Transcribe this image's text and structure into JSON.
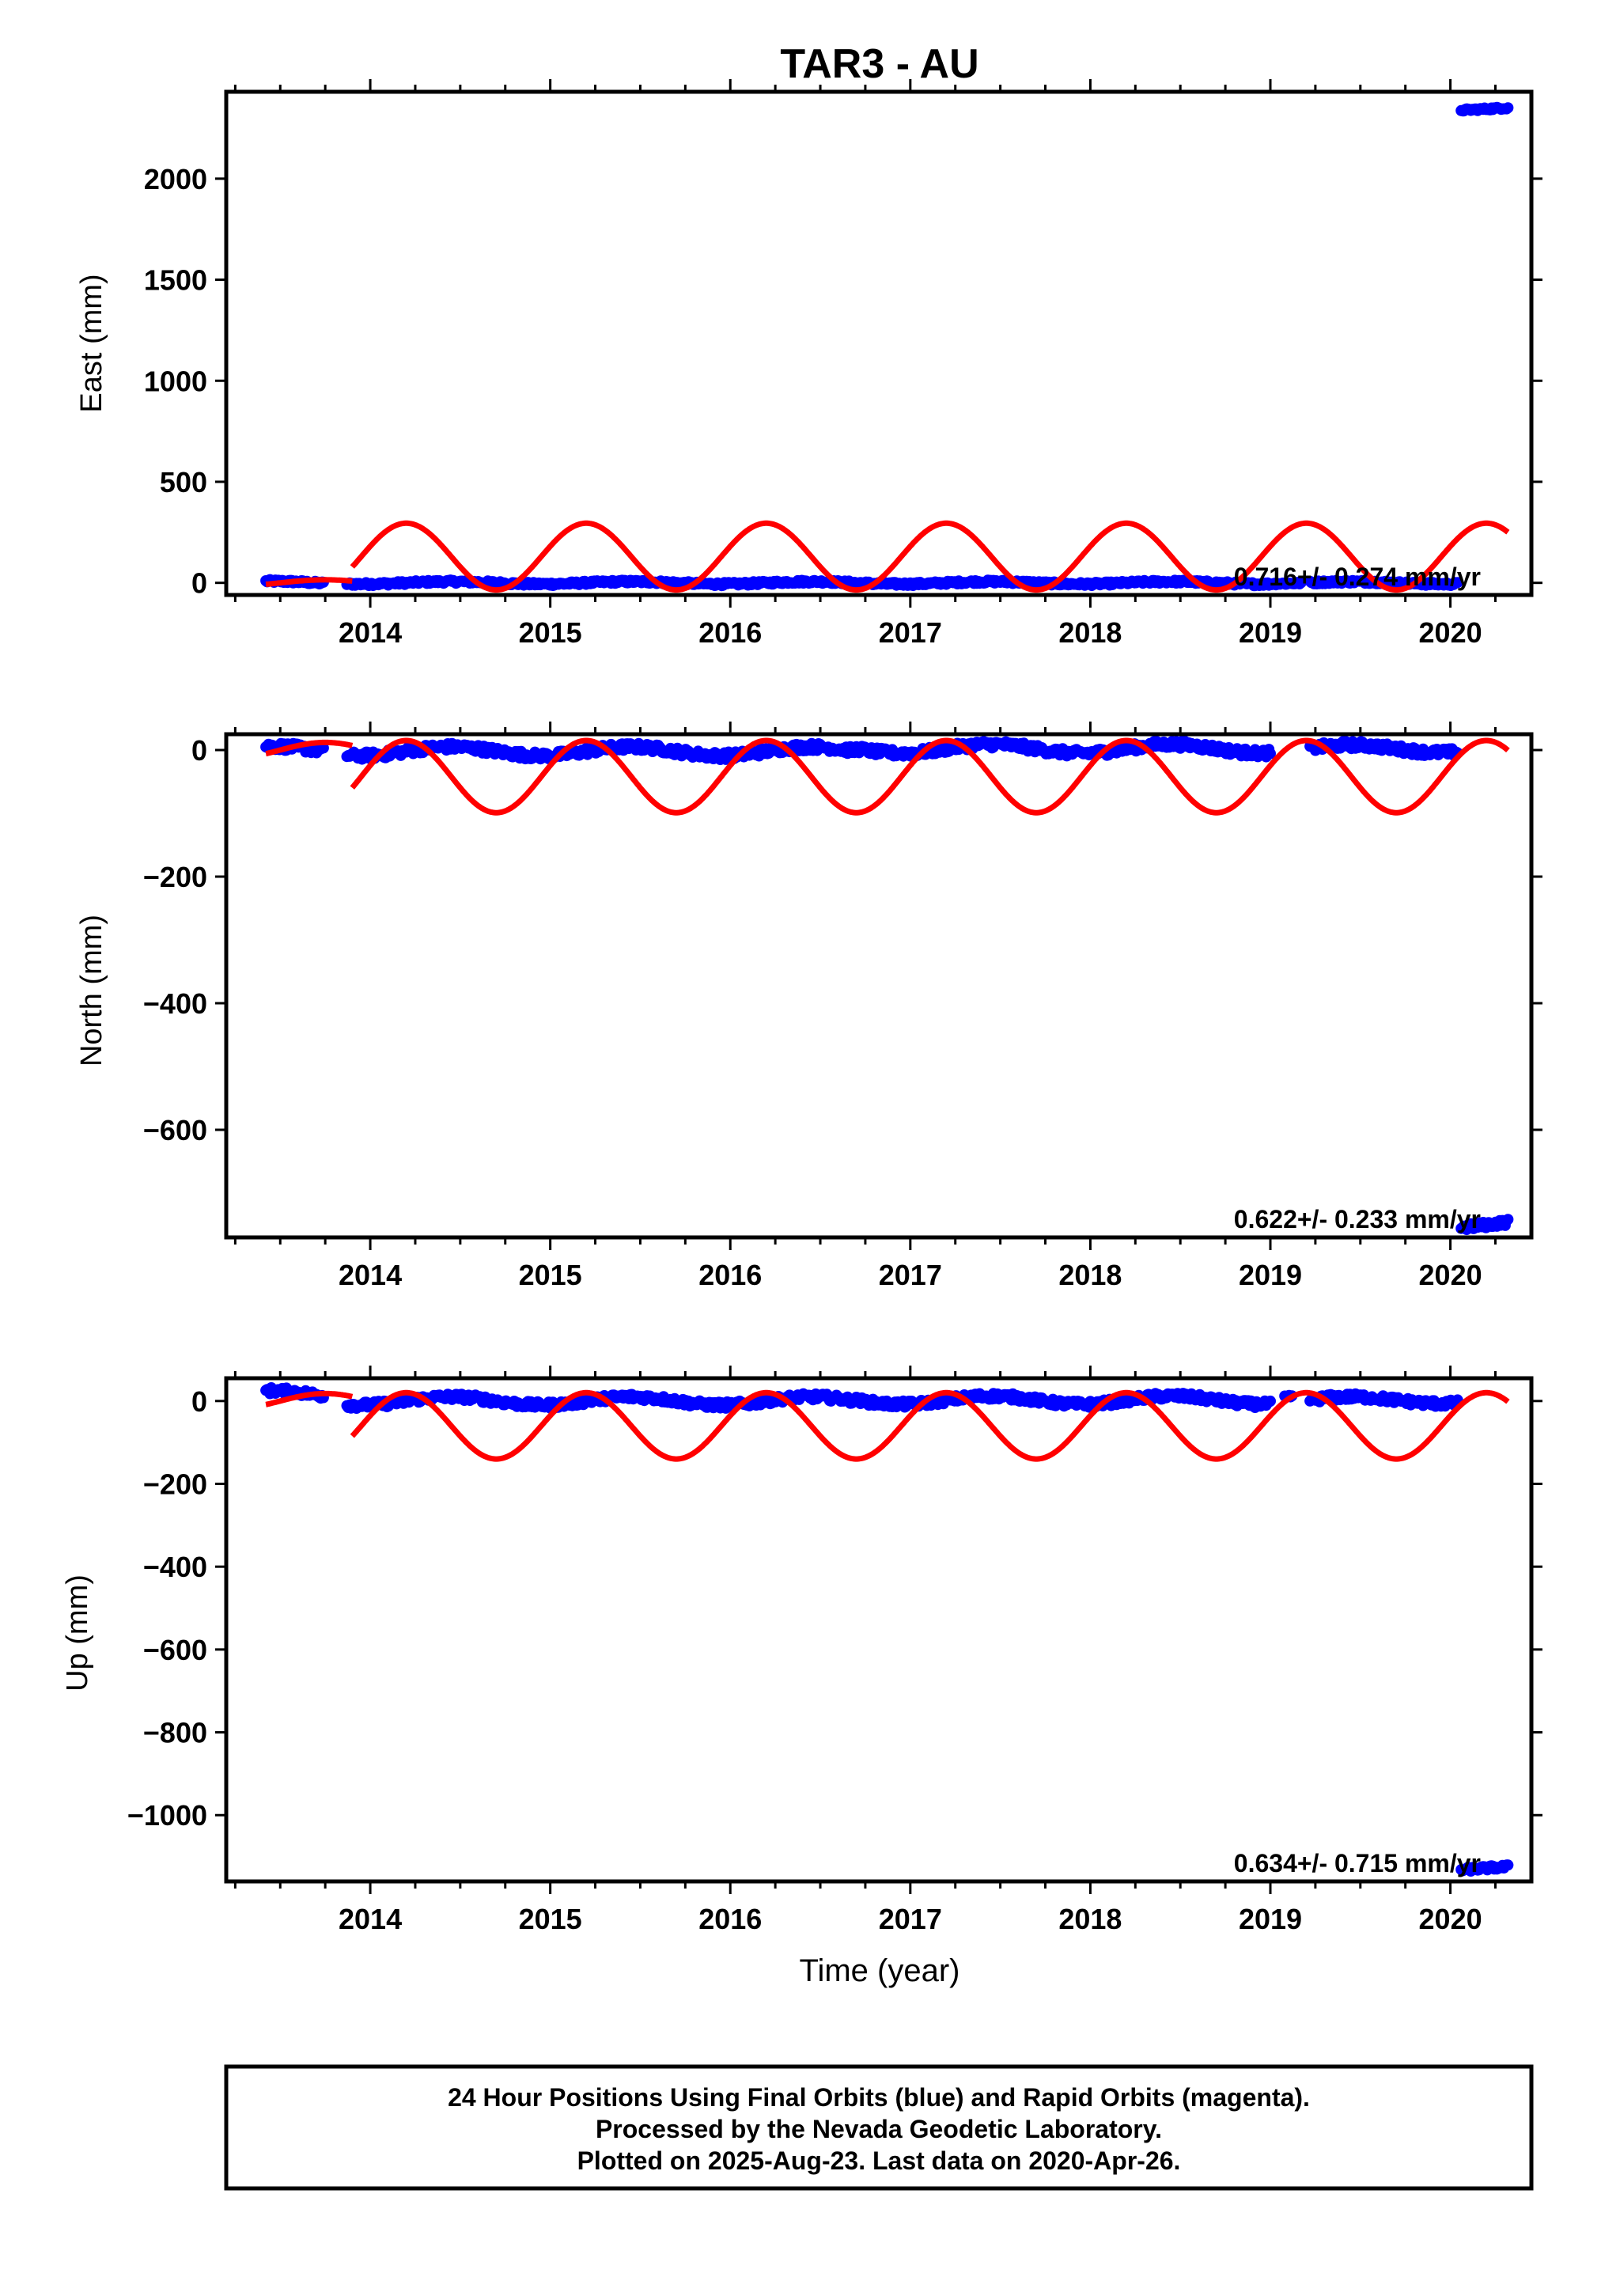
{
  "title": "TAR3 - AU",
  "x_tick_labels": [
    "2014",
    "2015",
    "2016",
    "2017",
    "2018",
    "2019",
    "2020"
  ],
  "x_axis_label": "Time (year)",
  "colors": {
    "final_orbits": "#0000ff",
    "rapid_orbits_curve": "#ff0000",
    "frame": "#000000"
  },
  "footer": {
    "line1": "24 Hour Positions Using Final Orbits (blue) and Rapid Orbits (magenta).",
    "line2": "Processed by the Nevada Geodetic Laboratory.",
    "line3": "Plotted on 2025-Aug-23. Last data on 2020-Apr-26."
  },
  "chart_data": [
    {
      "type": "scatter",
      "ylabel": "East (mm)",
      "xlabel": "",
      "xlim": [
        2013.2,
        2020.45
      ],
      "ylim": [
        -60,
        2430
      ],
      "y_ticks": [
        0,
        500,
        1000,
        1500,
        2000
      ],
      "y_tick_labels": [
        "0",
        "500",
        "1000",
        "1500",
        "2000"
      ],
      "grid": false,
      "rate_label": "0.716+/- 0.274 mm/yr",
      "series": [
        {
          "kind": "points",
          "segments": [
            {
              "start": 2013.42,
              "end": 2013.74,
              "mean": 0,
              "amp": 8,
              "jitter": 8
            },
            {
              "start": 2013.87,
              "end": 2014.0,
              "mean": 0,
              "amp": 6,
              "jitter": 8
            },
            {
              "start": 2014.0,
              "end": 2016.69,
              "mean": 0,
              "amp": 6,
              "jitter": 8
            },
            {
              "start": 2016.7,
              "end": 2019.0,
              "mean": 0,
              "amp": 6,
              "jitter": 8
            },
            {
              "start": 2019.0,
              "end": 2019.17,
              "mean": 0,
              "amp": 5,
              "jitter": 6
            },
            {
              "start": 2019.22,
              "end": 2020.04,
              "mean": 0,
              "amp": 6,
              "jitter": 8
            },
            {
              "start": 2020.06,
              "end": 2020.32,
              "mean": 2345,
              "amp": 8,
              "jitter": 6
            }
          ]
        },
        {
          "kind": "model",
          "x_range": [
            2013.42,
            2020.32
          ],
          "offset": 0,
          "amplitude": 0,
          "terms": [
            {
              "start": 2013.42,
              "end": 2013.9,
              "mean": 0,
              "amp": 15
            },
            {
              "start": 2013.9,
              "end": 2020.32,
              "mean": 130,
              "amp": 165
            }
          ]
        }
      ]
    },
    {
      "type": "scatter",
      "ylabel": "North (mm)",
      "xlabel": "",
      "xlim": [
        2013.2,
        2020.45
      ],
      "ylim": [
        -770,
        25
      ],
      "y_ticks": [
        0,
        -200,
        -400,
        -600
      ],
      "y_tick_labels": [
        "0",
        "−200",
        "−400",
        "−600"
      ],
      "grid": false,
      "rate_label": "0.622+/- 0.233 mm/yr",
      "series": [
        {
          "kind": "points",
          "segments": [
            {
              "start": 2013.42,
              "end": 2013.74,
              "mean": 0,
              "amp": 6,
              "jitter": 6
            },
            {
              "start": 2013.87,
              "end": 2016.69,
              "mean": -2,
              "amp": 7,
              "jitter": 6
            },
            {
              "start": 2016.7,
              "end": 2019.0,
              "mean": 2,
              "amp": 7,
              "jitter": 6
            },
            {
              "start": 2019.22,
              "end": 2020.04,
              "mean": 2,
              "amp": 6,
              "jitter": 6
            },
            {
              "start": 2020.06,
              "end": 2020.32,
              "mean": -750,
              "amp": 6,
              "jitter": 5
            }
          ]
        },
        {
          "kind": "model",
          "terms": [
            {
              "start": 2013.42,
              "end": 2013.9,
              "mean": 0,
              "amp": 12
            },
            {
              "start": 2013.9,
              "end": 2020.32,
              "mean": -42,
              "amp": 57
            }
          ]
        }
      ]
    },
    {
      "type": "scatter",
      "ylabel": "Up (mm)",
      "xlabel": "Time (year)",
      "xlim": [
        2013.2,
        2020.45
      ],
      "ylim": [
        -1160,
        55
      ],
      "y_ticks": [
        0,
        -200,
        -400,
        -600,
        -800,
        -1000
      ],
      "y_tick_labels": [
        "0",
        "−200",
        "−400",
        "−600",
        "−800",
        "−1000"
      ],
      "grid": false,
      "rate_label": "0.634+/- 0.715 mm/yr",
      "series": [
        {
          "kind": "points",
          "segments": [
            {
              "start": 2013.42,
              "end": 2013.74,
              "mean": 15,
              "amp": 10,
              "jitter": 8
            },
            {
              "start": 2013.87,
              "end": 2016.69,
              "mean": 0,
              "amp": 10,
              "jitter": 8
            },
            {
              "start": 2016.7,
              "end": 2019.0,
              "mean": 2,
              "amp": 10,
              "jitter": 8
            },
            {
              "start": 2019.08,
              "end": 2019.12,
              "mean": 12,
              "amp": 4,
              "jitter": 4
            },
            {
              "start": 2019.22,
              "end": 2020.04,
              "mean": 2,
              "amp": 8,
              "jitter": 8
            },
            {
              "start": 2020.06,
              "end": 2020.32,
              "mean": -1128,
              "amp": 5,
              "jitter": 5
            }
          ]
        },
        {
          "kind": "model",
          "terms": [
            {
              "start": 2013.42,
              "end": 2013.9,
              "mean": 0,
              "amp": 18
            },
            {
              "start": 2013.9,
              "end": 2020.32,
              "mean": -60,
              "amp": 80
            }
          ]
        }
      ]
    }
  ]
}
